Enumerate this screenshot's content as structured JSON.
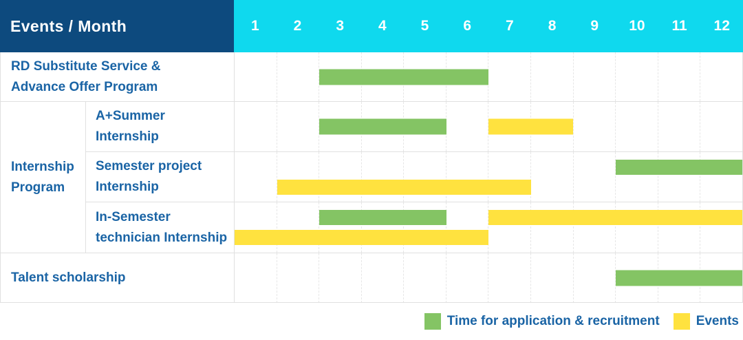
{
  "header": {
    "title": "Events / Month"
  },
  "style": {
    "header_bg": "#0d4a7e",
    "month_header_bg": "#0fd9ee",
    "grid": "#e0e0e0",
    "label_color": "#1a64a5",
    "recruitment_color": "#84c464",
    "event_color": "#ffe23f"
  },
  "chart_data": {
    "type": "bar",
    "subtype": "gantt",
    "title": "Events / Month",
    "x_axis": {
      "label": "Month",
      "ticks": [
        "1",
        "2",
        "3",
        "4",
        "5",
        "6",
        "7",
        "8",
        "9",
        "10",
        "11",
        "12"
      ],
      "range": [
        1,
        12
      ],
      "grid": true
    },
    "legend_position": "bottom-right",
    "legend": [
      {
        "key": "recruitment",
        "name": "Time for application & recruitment",
        "color": "#84c464"
      },
      {
        "key": "event",
        "name": "Events",
        "color": "#ffe23f"
      }
    ],
    "group_label": "Internship Program",
    "group_label_display": "Internship\nProgram",
    "rows": [
      {
        "label": "RD Substitute Service & Advance Offer Program",
        "label_display": "RD Substitute Service &\nAdvance Offer Program",
        "group": null,
        "spans": [
          {
            "series_key": "recruitment",
            "series": "Time for application & recruitment",
            "months": [
              3,
              6
            ],
            "lane": "single"
          }
        ]
      },
      {
        "label": "A+Summer Internship",
        "label_display": "A+Summer\nInternship",
        "group": "Internship Program",
        "spans": [
          {
            "series_key": "recruitment",
            "series": "Time for application & recruitment",
            "months": [
              3,
              5
            ],
            "lane": "single"
          },
          {
            "series_key": "event",
            "series": "Events",
            "months": [
              7,
              8
            ],
            "lane": "single"
          }
        ]
      },
      {
        "label": "Semester project Internship",
        "label_display": "Semester project\nInternship",
        "group": "Internship Program",
        "spans": [
          {
            "series_key": "recruitment",
            "series": "Time for application & recruitment",
            "months": [
              10,
              12
            ],
            "lane": "top"
          },
          {
            "series_key": "event",
            "series": "Events",
            "months": [
              2,
              7
            ],
            "lane": "bottom"
          }
        ]
      },
      {
        "label": "In-Semester technician Internship",
        "label_display": "In-Semester\ntechnician Internship",
        "group": "Internship Program",
        "spans": [
          {
            "series_key": "recruitment",
            "series": "Time for application & recruitment",
            "months": [
              3,
              5
            ],
            "lane": "top"
          },
          {
            "series_key": "event",
            "series": "Events",
            "months": [
              7,
              12
            ],
            "lane": "top"
          },
          {
            "series_key": "event",
            "series": "Events",
            "months": [
              1,
              6
            ],
            "lane": "bottom"
          }
        ]
      },
      {
        "label": "Talent scholarship",
        "label_display": "Talent scholarship",
        "group": null,
        "spans": [
          {
            "series_key": "recruitment",
            "series": "Time for application & recruitment",
            "months": [
              10,
              12
            ],
            "lane": "single"
          }
        ]
      }
    ]
  }
}
